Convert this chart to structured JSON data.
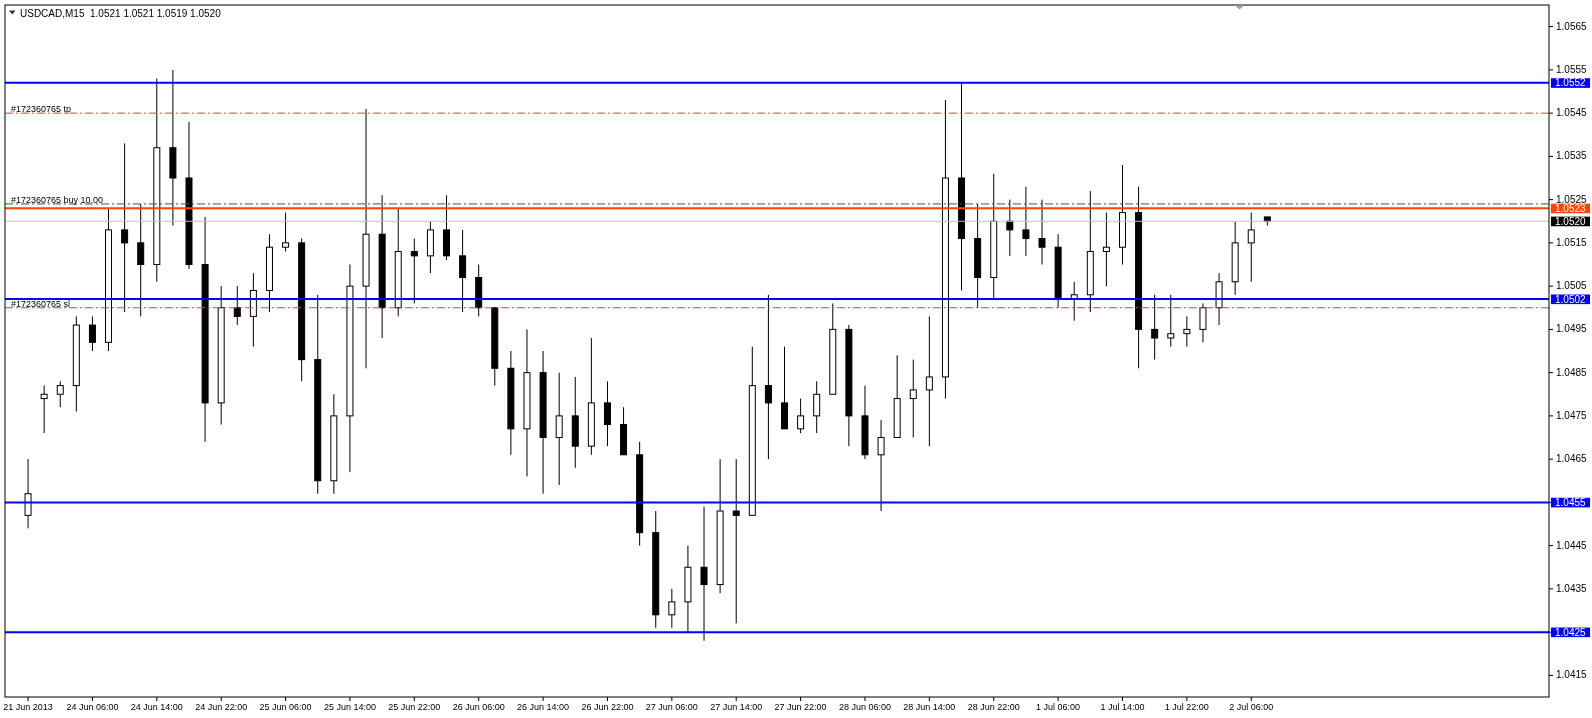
{
  "chart_data": {
    "type": "candlestick",
    "title": "USDCAD,M15  1.0521 1.0521 1.0519 1.0520",
    "color": "#000000",
    "categories": [
      "21 Jun 2013",
      null,
      null,
      null,
      "24 Jun 06:00",
      null,
      null,
      null,
      "24 Jun 14:00",
      null,
      null,
      null,
      "24 Jun 22:00",
      null,
      null,
      null,
      "25 Jun 06:00",
      null,
      null,
      null,
      "25 Jun 14:00",
      null,
      null,
      null,
      "25 Jun 22:00",
      null,
      null,
      null,
      "26 Jun 06:00",
      null,
      null,
      null,
      "26 Jun 14:00",
      null,
      null,
      null,
      "26 Jun 22:00",
      null,
      null,
      null,
      "27 Jun 06:00",
      null,
      null,
      null,
      "27 Jun 14:00",
      null,
      null,
      null,
      "27 Jun 22:00",
      null,
      null,
      null,
      "28 Jun 06:00",
      null,
      null,
      null,
      "28 Jun 14:00",
      null,
      null,
      null,
      "28 Jun 22:00",
      null,
      null,
      null,
      "1 Jul 06:00",
      null,
      null,
      null,
      "1 Jul 14:00",
      null,
      null,
      null,
      "1 Jul 22:00",
      null,
      null,
      null,
      "2 Jul 06:00",
      null,
      null,
      null,
      null,
      null,
      null,
      null,
      null,
      null,
      null,
      null,
      null,
      null,
      null,
      null,
      null,
      null,
      null
    ],
    "ohlc": [
      [
        1.0452,
        1.0465,
        1.0449,
        1.0457
      ],
      [
        1.0479,
        1.0482,
        1.0471,
        1.048
      ],
      [
        1.048,
        1.0483,
        1.0477,
        1.0482
      ],
      [
        1.0482,
        1.0498,
        1.0476,
        1.0496
      ],
      [
        1.0496,
        1.0498,
        1.049,
        1.0492
      ],
      [
        1.0492,
        1.0523,
        1.049,
        1.0518
      ],
      [
        1.0518,
        1.0538,
        1.0499,
        1.0515
      ],
      [
        1.0515,
        1.0524,
        1.0498,
        1.051
      ],
      [
        1.051,
        1.0553,
        1.0506,
        1.0537
      ],
      [
        1.0537,
        1.0555,
        1.0519,
        1.053
      ],
      [
        1.053,
        1.0543,
        1.0509,
        1.051
      ],
      [
        1.051,
        1.0521,
        1.0469,
        1.0478
      ],
      [
        1.0478,
        1.0505,
        1.0473,
        1.05
      ],
      [
        1.05,
        1.0505,
        1.0496,
        1.0498
      ],
      [
        1.0498,
        1.0508,
        1.0491,
        1.0504
      ],
      [
        1.0504,
        1.0517,
        1.0499,
        1.0514
      ],
      [
        1.0514,
        1.0522,
        1.0513,
        1.0515
      ],
      [
        1.0515,
        1.0516,
        1.0483,
        1.0488
      ],
      [
        1.0488,
        1.0503,
        1.0457,
        1.046
      ],
      [
        1.046,
        1.048,
        1.0457,
        1.0475
      ],
      [
        1.0475,
        1.051,
        1.0462,
        1.0505
      ],
      [
        1.0505,
        1.0546,
        1.0486,
        1.0517
      ],
      [
        1.0517,
        1.0526,
        1.0493,
        1.05
      ],
      [
        1.05,
        1.0523,
        1.0498,
        1.0513
      ],
      [
        1.0513,
        1.0516,
        1.0501,
        1.0512
      ],
      [
        1.0512,
        1.052,
        1.0508,
        1.0518
      ],
      [
        1.0518,
        1.0526,
        1.0511,
        1.0512
      ],
      [
        1.0512,
        1.0518,
        1.0499,
        1.0507
      ],
      [
        1.0507,
        1.051,
        1.0498,
        1.05
      ],
      [
        1.05,
        1.05,
        1.0482,
        1.0486
      ],
      [
        1.0486,
        1.049,
        1.0466,
        1.0472
      ],
      [
        1.0472,
        1.0495,
        1.0461,
        1.0485
      ],
      [
        1.0485,
        1.049,
        1.0457,
        1.047
      ],
      [
        1.047,
        1.0485,
        1.0459,
        1.0475
      ],
      [
        1.0475,
        1.0484,
        1.0463,
        1.0468
      ],
      [
        1.0468,
        1.0493,
        1.0466,
        1.0478
      ],
      [
        1.0478,
        1.0483,
        1.0468,
        1.0473
      ],
      [
        1.0473,
        1.0477,
        1.0466,
        1.0466
      ],
      [
        1.0466,
        1.0469,
        1.0445,
        1.0448
      ],
      [
        1.0448,
        1.0453,
        1.0426,
        1.0429
      ],
      [
        1.0429,
        1.0435,
        1.0426,
        1.0432
      ],
      [
        1.0432,
        1.0445,
        1.0425,
        1.044
      ],
      [
        1.044,
        1.0454,
        1.0423,
        1.0436
      ],
      [
        1.0436,
        1.0465,
        1.0434,
        1.0453
      ],
      [
        1.0453,
        1.0465,
        1.0427,
        1.0452
      ],
      [
        1.0452,
        1.0491,
        1.0452,
        1.0482
      ],
      [
        1.0482,
        1.0503,
        1.0465,
        1.0478
      ],
      [
        1.0478,
        1.0491,
        1.0472,
        1.0472
      ],
      [
        1.0472,
        1.0479,
        1.0471,
        1.0475
      ],
      [
        1.0475,
        1.0483,
        1.0471,
        1.048
      ],
      [
        1.048,
        1.0501,
        1.048,
        1.0495
      ],
      [
        1.0495,
        1.0496,
        1.0468,
        1.0475
      ],
      [
        1.0475,
        1.0482,
        1.0465,
        1.0466
      ],
      [
        1.0466,
        1.0474,
        1.0453,
        1.047
      ],
      [
        1.047,
        1.0489,
        1.047,
        1.0479
      ],
      [
        1.0479,
        1.0488,
        1.047,
        1.0481
      ],
      [
        1.0481,
        1.0498,
        1.0468,
        1.0484
      ],
      [
        1.0484,
        1.0548,
        1.0479,
        1.053
      ],
      [
        1.053,
        1.0552,
        1.0504,
        1.0516
      ],
      [
        1.0516,
        1.0524,
        1.05,
        1.0507
      ],
      [
        1.0507,
        1.0531,
        1.0502,
        1.052
      ],
      [
        1.052,
        1.0525,
        1.0512,
        1.0518
      ],
      [
        1.0518,
        1.0528,
        1.0512,
        1.0516
      ],
      [
        1.0516,
        1.0525,
        1.051,
        1.0514
      ],
      [
        1.0514,
        1.0517,
        1.05,
        1.0502
      ],
      [
        1.0502,
        1.0506,
        1.0497,
        1.0503
      ],
      [
        1.0503,
        1.0527,
        1.0499,
        1.0513
      ],
      [
        1.0513,
        1.0522,
        1.0505,
        1.0514
      ],
      [
        1.0514,
        1.0533,
        1.051,
        1.0522
      ],
      [
        1.0522,
        1.0528,
        1.0486,
        1.0495
      ],
      [
        1.0495,
        1.0503,
        1.0488,
        1.0493
      ],
      [
        1.0493,
        1.0503,
        1.0491,
        1.0494
      ],
      [
        1.0494,
        1.0498,
        1.0491,
        1.0495
      ],
      [
        1.0495,
        1.0501,
        1.0492,
        1.05
      ],
      [
        1.05,
        1.0508,
        1.0496,
        1.0506
      ],
      [
        1.0506,
        1.052,
        1.0503,
        1.0515
      ],
      [
        1.0515,
        1.0522,
        1.0506,
        1.0518
      ],
      [
        1.0521,
        1.0521,
        1.0519,
        1.052
      ],
      null,
      null,
      null,
      null,
      null,
      null,
      null,
      null,
      null,
      null,
      null,
      null,
      null,
      null,
      null,
      null,
      null
    ],
    "ylim": [
      1.041,
      1.057
    ],
    "yticks": [
      1.0415,
      {
        "value": 1.0425,
        "label": null
      },
      1.0435,
      1.0445,
      {
        "value": 1.0455,
        "label": null
      },
      1.0465,
      1.0475,
      1.0485,
      1.0495,
      1.0505,
      1.0515,
      1.0525,
      1.0535,
      1.0545,
      1.0555,
      1.0565
    ],
    "ref_lines": [
      {
        "axis": "y",
        "value": 1.0545,
        "label": "#172360765 tp",
        "color": "#ff4500",
        "line_style": "dashdot"
      },
      {
        "axis": "y",
        "value": 1.0524,
        "label": "#172360765 buy 10.00",
        "color": "#008000",
        "line_style": "dashdot"
      },
      {
        "axis": "y",
        "value": 1.05,
        "label": "#172360765 sl",
        "color": "#ff4500",
        "line_style": "dashdot"
      },
      {
        "axis": "y",
        "value": 1.0552,
        "label": "1.0552",
        "color": "#0000ff",
        "line_style": "solid"
      },
      {
        "axis": "y",
        "value": 1.0502,
        "label": "1.0502",
        "color": "#0000ff",
        "line_style": "solid"
      },
      {
        "axis": "y",
        "value": 1.0455,
        "label": "1.0455",
        "color": "#0000ff",
        "line_style": "solid"
      },
      {
        "axis": "y",
        "value": 1.0425,
        "label": "1.0425",
        "color": "#0000ff",
        "line_style": "solid"
      },
      {
        "axis": "y",
        "value": 1.0523,
        "label": "1.0523",
        "color": "#ff4500",
        "line_style": "solid"
      },
      {
        "axis": "y",
        "value": 1.052,
        "label": "1.0520",
        "color": "#c0c0c0",
        "line_style": "solid"
      }
    ]
  }
}
